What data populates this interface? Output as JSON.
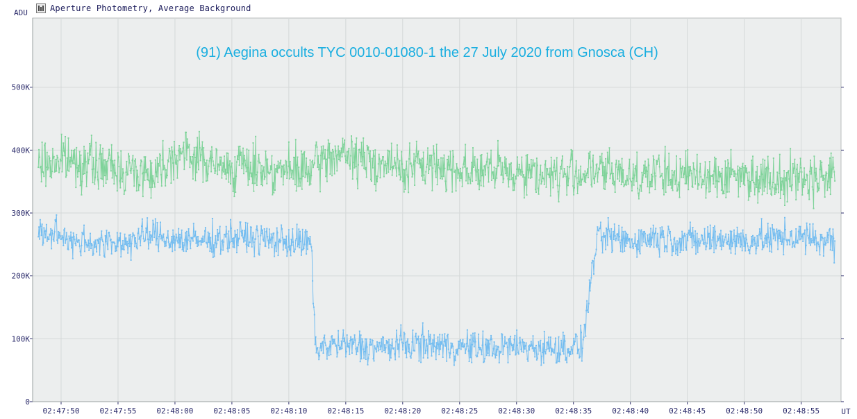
{
  "window": {
    "title": "Aperture Photometry, Average Background",
    "icon": "photometry-app-icon"
  },
  "colors": {
    "plot_background": "#eceeee",
    "axis": "#2a2a6a",
    "grid": "#d4d8d8",
    "title": "#19aee0",
    "series_target": "#74bdf0",
    "series_comparison": "#7fd39a"
  },
  "chart_data": {
    "type": "line",
    "title": "(91) Aegina occults TYC 0010-01080-1 the 27 July 2020 from Gnosca (CH)",
    "ylabel": "ADU",
    "xlabel": "UT",
    "ylim": [
      0,
      610000
    ],
    "xlim": [
      "02:47:47.5",
      "02:48:58.5"
    ],
    "yticks": [
      {
        "value": 0,
        "label": "0"
      },
      {
        "value": 100000,
        "label": "100K"
      },
      {
        "value": 200000,
        "label": "200K"
      },
      {
        "value": 300000,
        "label": "300K"
      },
      {
        "value": 400000,
        "label": "400K"
      },
      {
        "value": 500000,
        "label": "500K"
      }
    ],
    "xticks": [
      "02:47:50",
      "02:47:55",
      "02:48:00",
      "02:48:05",
      "02:48:10",
      "02:48:15",
      "02:48:20",
      "02:48:25",
      "02:48:30",
      "02:48:35",
      "02:48:40",
      "02:48:45",
      "02:48:50",
      "02:48:55"
    ],
    "grid": true,
    "legend": "none",
    "series": [
      {
        "role": "target",
        "color": "#74bdf0",
        "x": [
          "02:47:48",
          "02:47:50",
          "02:47:52",
          "02:47:54",
          "02:47:56",
          "02:47:58",
          "02:48:00",
          "02:48:02",
          "02:48:04",
          "02:48:06",
          "02:48:08",
          "02:48:10",
          "02:48:12",
          "02:48:12.3",
          "02:48:14",
          "02:48:16",
          "02:48:18",
          "02:48:20",
          "02:48:22",
          "02:48:24",
          "02:48:26",
          "02:48:28",
          "02:48:30",
          "02:48:32",
          "02:48:34",
          "02:48:35.8",
          "02:48:36.3",
          "02:48:37",
          "02:48:38",
          "02:48:40",
          "02:48:42",
          "02:48:44",
          "02:48:46",
          "02:48:48",
          "02:48:50",
          "02:48:52",
          "02:48:54",
          "02:48:56",
          "02:48:58"
        ],
        "values": [
          270000,
          262000,
          255000,
          250000,
          255000,
          265000,
          258000,
          255000,
          260000,
          262000,
          258000,
          255000,
          250000,
          85000,
          90000,
          88000,
          85000,
          90000,
          92000,
          88000,
          86000,
          85000,
          88000,
          85000,
          85000,
          90000,
          160000,
          255000,
          262000,
          255000,
          262000,
          258000,
          255000,
          260000,
          255000,
          258000,
          262000,
          258000,
          255000
        ]
      },
      {
        "role": "comparison",
        "color": "#7fd39a",
        "x": [
          "02:47:48",
          "02:47:50",
          "02:47:52",
          "02:47:54",
          "02:47:56",
          "02:47:58",
          "02:48:00",
          "02:48:02",
          "02:48:04",
          "02:48:06",
          "02:48:08",
          "02:48:10",
          "02:48:12",
          "02:48:14",
          "02:48:16",
          "02:48:18",
          "02:48:20",
          "02:48:22",
          "02:48:24",
          "02:48:26",
          "02:48:28",
          "02:48:30",
          "02:48:32",
          "02:48:34",
          "02:48:36",
          "02:48:38",
          "02:48:40",
          "02:48:42",
          "02:48:44",
          "02:48:46",
          "02:48:48",
          "02:48:50",
          "02:48:52",
          "02:48:54",
          "02:48:56",
          "02:48:58"
        ],
        "values": [
          375000,
          385000,
          380000,
          372000,
          368000,
          362000,
          395000,
          390000,
          370000,
          375000,
          372000,
          365000,
          368000,
          395000,
          385000,
          380000,
          370000,
          375000,
          372000,
          370000,
          365000,
          368000,
          362000,
          360000,
          365000,
          365000,
          360000,
          362000,
          358000,
          362000,
          358000,
          360000,
          355000,
          358000,
          355000,
          362000
        ]
      }
    ]
  }
}
